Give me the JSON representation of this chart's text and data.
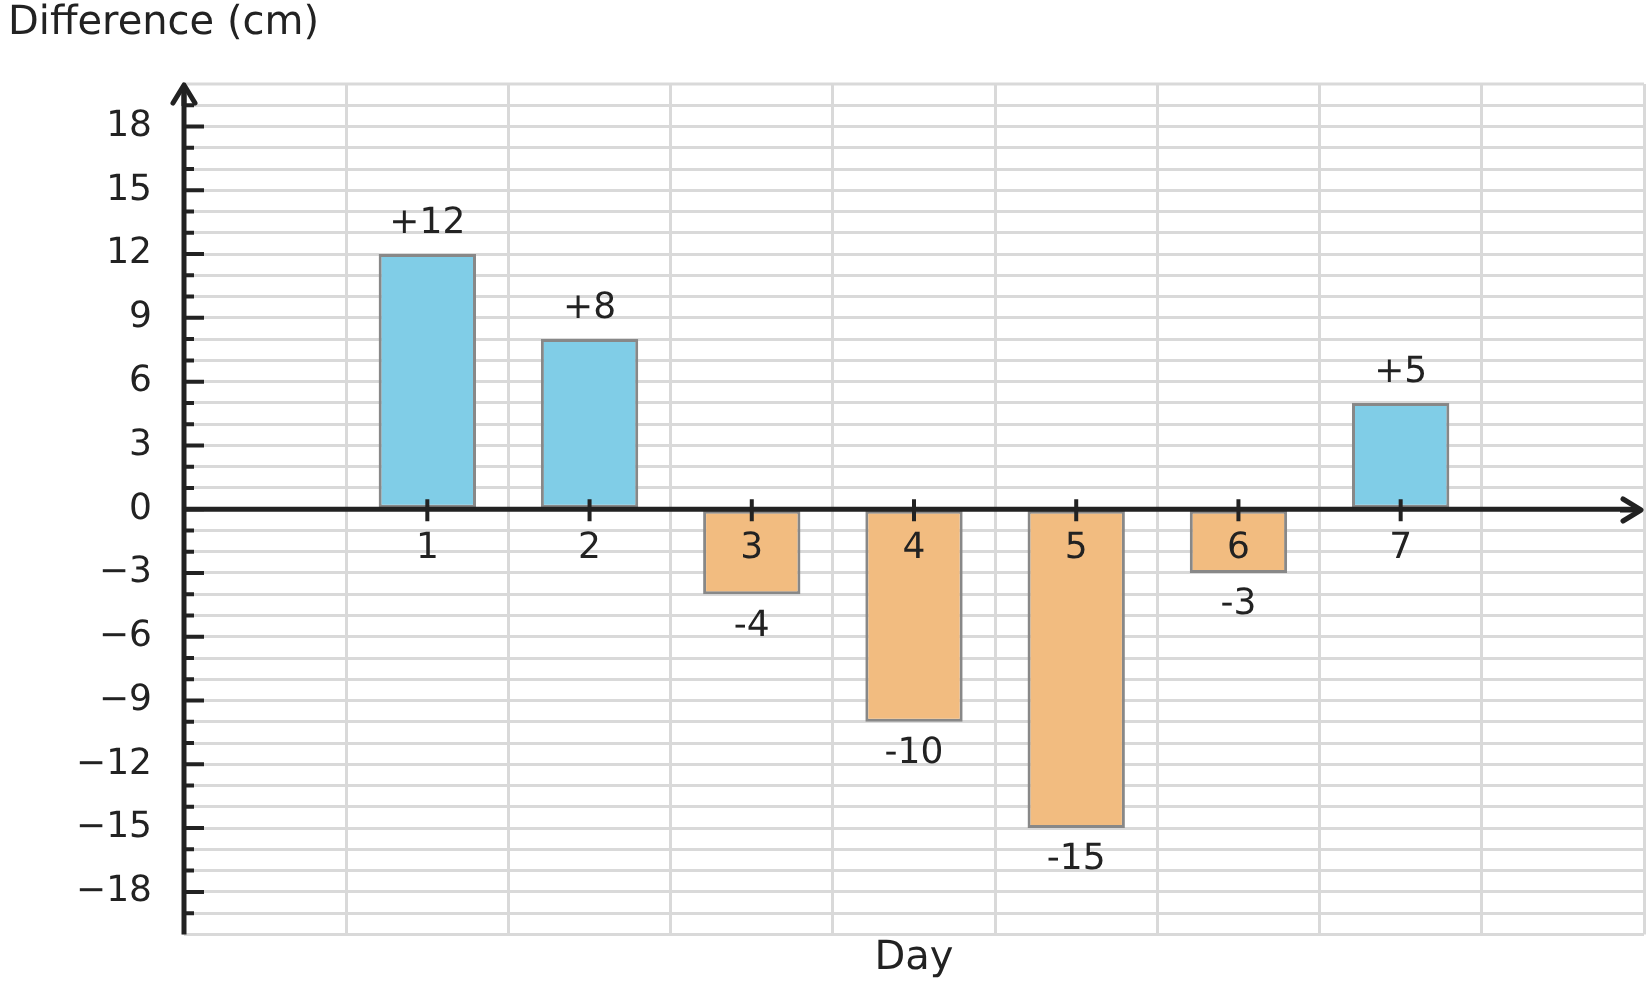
{
  "chart_data": {
    "type": "bar",
    "xlabel": "Day",
    "ylabel": "Difference (cm)",
    "categories": [
      "1",
      "2",
      "3",
      "4",
      "5",
      "6",
      "7"
    ],
    "values": [
      12,
      8,
      -4,
      -10,
      -15,
      -3,
      5
    ],
    "colors": [
      "#80cde7",
      "#80cde7",
      "#f2bc80",
      "#f2bc80",
      "#f2bc80",
      "#f2bc80",
      "#80cde7"
    ],
    "value_labels": [
      "+12",
      "+8",
      "-4",
      "-10",
      "-15",
      "-3",
      "+5"
    ],
    "ylim": [
      -20,
      20
    ],
    "yticks": [
      {
        "value": -19,
        "label": null
      },
      {
        "value": -18,
        "label": "−18"
      },
      {
        "value": -17,
        "label": null
      },
      {
        "value": -16,
        "label": null
      },
      {
        "value": -15,
        "label": "−15"
      },
      {
        "value": -14,
        "label": null
      },
      {
        "value": -13,
        "label": null
      },
      {
        "value": -12,
        "label": "−12"
      },
      {
        "value": -11,
        "label": null
      },
      {
        "value": -10,
        "label": null
      },
      {
        "value": -9,
        "label": "−9"
      },
      {
        "value": -8,
        "label": null
      },
      {
        "value": -7,
        "label": null
      },
      {
        "value": -6,
        "label": "−6"
      },
      {
        "value": -5,
        "label": null
      },
      {
        "value": -4,
        "label": null
      },
      {
        "value": -3,
        "label": "−3"
      },
      {
        "value": -2,
        "label": null
      },
      {
        "value": -1,
        "label": null
      },
      0,
      {
        "value": 1,
        "label": null
      },
      {
        "value": 2,
        "label": null
      },
      3,
      {
        "value": 4,
        "label": null
      },
      {
        "value": 5,
        "label": null
      },
      6,
      {
        "value": 7,
        "label": null
      },
      {
        "value": 8,
        "label": null
      },
      9,
      {
        "value": 10,
        "label": null
      },
      {
        "value": 11,
        "label": null
      },
      12,
      {
        "value": 13,
        "label": null
      },
      {
        "value": 14,
        "label": null
      },
      15,
      {
        "value": 16,
        "label": null
      },
      {
        "value": 17,
        "label": null
      },
      18,
      {
        "value": 19,
        "label": null
      }
    ],
    "grid": true
  }
}
